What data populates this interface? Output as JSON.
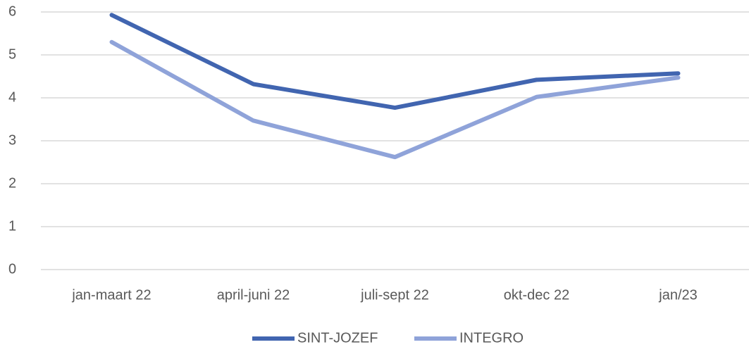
{
  "chart_data": {
    "type": "line",
    "categories": [
      "jan-maart 22",
      "april-juni 22",
      "juli-sept 22",
      "okt-dec 22",
      "jan/23"
    ],
    "series": [
      {
        "name": "SINT-JOZEF",
        "color": "#4165b0",
        "values": [
          5.93,
          4.32,
          3.77,
          4.42,
          4.57
        ]
      },
      {
        "name": "INTEGRO",
        "color": "#8fa3d9",
        "values": [
          5.3,
          3.47,
          2.62,
          4.02,
          4.47
        ]
      }
    ],
    "ylim": [
      0,
      6
    ],
    "yticks": [
      0,
      1,
      2,
      3,
      4,
      5,
      6
    ],
    "grid": true,
    "legend": "bottom"
  }
}
